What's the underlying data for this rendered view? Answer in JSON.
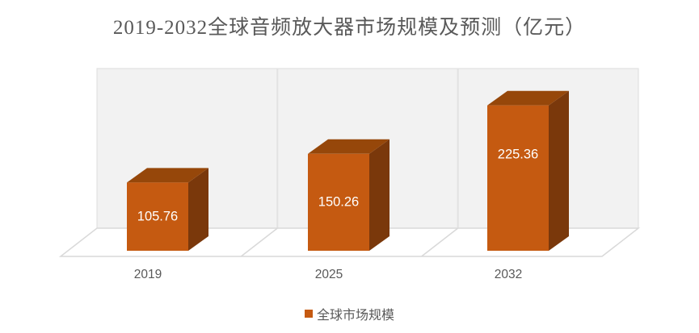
{
  "title": "2019-2032全球音频放大器市场规模及预测（亿元）",
  "legend": {
    "label": "全球市场规模",
    "swatch_color": "#C55A11"
  },
  "colors": {
    "bar_front": "#C55A11",
    "bar_top": "#96470A",
    "bar_side": "#7A380B",
    "wall": "#F2F2F2",
    "wall_edge": "#DCDCDC",
    "grid_line": "#E2E2E2",
    "floor_fill": "#FFFFFF",
    "floor_edge": "#D9D9D9",
    "text": "#595959",
    "value_label_color": "#FFFFFF"
  },
  "chart_data": {
    "type": "bar",
    "style": "3d-column",
    "title": "2019-2032全球音频放大器市场规模及预测（亿元）",
    "unit": "亿元",
    "categories": [
      "2019",
      "2025",
      "2032"
    ],
    "series": [
      {
        "name": "全球市场规模",
        "values": [
          105.76,
          150.26,
          225.36
        ]
      }
    ],
    "value_labels": [
      "105.76",
      "150.26",
      "225.36"
    ],
    "ylim": [
      0,
      250
    ],
    "legend_position": "bottom",
    "grid": "vertical-wall-panels",
    "axes": {
      "y_axis_visible": false,
      "x_axis_visible": true
    }
  }
}
